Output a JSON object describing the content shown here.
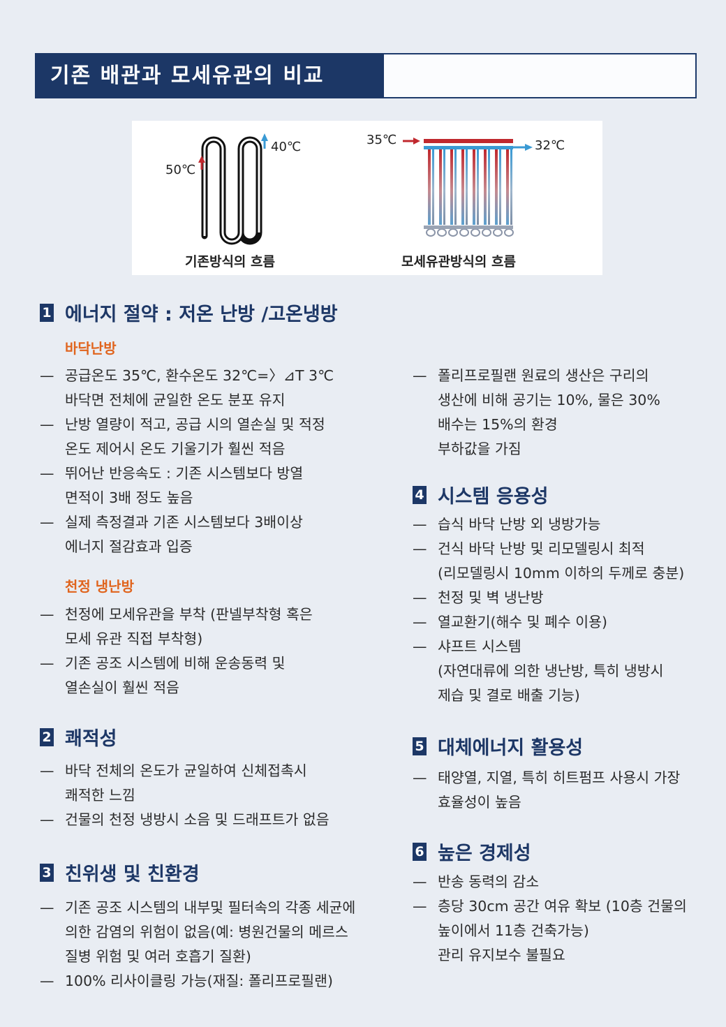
{
  "title": "기존 배관과 모세유관의 비교",
  "figure": {
    "left_temp_in": "50℃",
    "left_temp_out": "40℃",
    "left_caption": "기존방식의 흐름",
    "right_temp_in": "35℃",
    "right_temp_out": "32℃",
    "right_caption": "모세유관방식의 흐름",
    "colors": {
      "hot": "#c0282e",
      "cold": "#3a9ad4",
      "pipe": "#111111"
    }
  },
  "sections": [
    {
      "num": "1",
      "title": "에너지 절약 : 저온 난방 /고온냉방",
      "subsections": [
        {
          "title": "바닥난방",
          "items": [
            "공급온도 35℃, 환수온도 32℃=〉⊿T 3℃\n바닥면 전체에 균일한 온도 분포 유지",
            "난방 열량이 적고, 공급 시의 열손실 및 적정\n온도 제어시 온도 기울기가 훨씬 적음",
            "뛰어난 반응속도 : 기존 시스템보다 방열\n면적이 3배 정도 높음",
            "실제 측정결과 기존 시스템보다 3배이상\n에너지 절감효과 입증"
          ]
        },
        {
          "title": "천정 냉난방",
          "items": [
            "천정에 모세유관을 부착 (판넬부착형 혹은\n모세 유관 직접 부착형)",
            "기존 공조 시스템에 비해 운송동력 및\n열손실이 훨씬 적음"
          ]
        }
      ]
    },
    {
      "num": "2",
      "title": "쾌적성",
      "items": [
        "바닥 전체의 온도가 균일하여 신체접촉시\n쾌적한 느낌",
        "건물의 천정 냉방시 소음 및 드래프트가 없음"
      ]
    },
    {
      "num": "3",
      "title": "친위생 및 친환경",
      "items": [
        "기존 공조 시스템의 내부및 필터속의 각종 세균에\n의한 감염의 위험이 없음(예: 병원건물의 메르스\n질병 위험 및 여러 호흡기 질환)",
        "100% 리사이클링 가능(재질: 폴리프로필랜)"
      ]
    },
    {
      "num": "3-cont",
      "items": [
        "폴리프로필랜 원료의 생산은 구리의\n생산에 비해 공기는 10%, 물은 30%\n배수는 15%의 환경\n부하값을 가짐"
      ]
    },
    {
      "num": "4",
      "title": "시스템 응용성",
      "items": [
        "습식 바닥 난방 외 냉방가능",
        "건식 바닥 난방 및 리모델링시 최적\n(리모델링시 10mm 이하의 두께로 충분)",
        "천정 및 벽 냉난방",
        "열교환기(해수 및 폐수 이용)",
        "샤프트 시스템\n(자연대류에 의한 냉난방, 특히 냉방시\n제습 및 결로 배출 기능)"
      ]
    },
    {
      "num": "5",
      "title": "대체에너지 활용성",
      "items": [
        "태양열, 지열, 특히 히트펌프 사용시 가장\n효율성이 높음"
      ]
    },
    {
      "num": "6",
      "title": "높은 경제성",
      "items": [
        "반송 동력의 감소",
        "층당 30cm 공간 여유 확보 (10층 건물의\n높이에서 11층 건축가능)\n관리 유지보수 불필요"
      ]
    }
  ],
  "dash": "—"
}
